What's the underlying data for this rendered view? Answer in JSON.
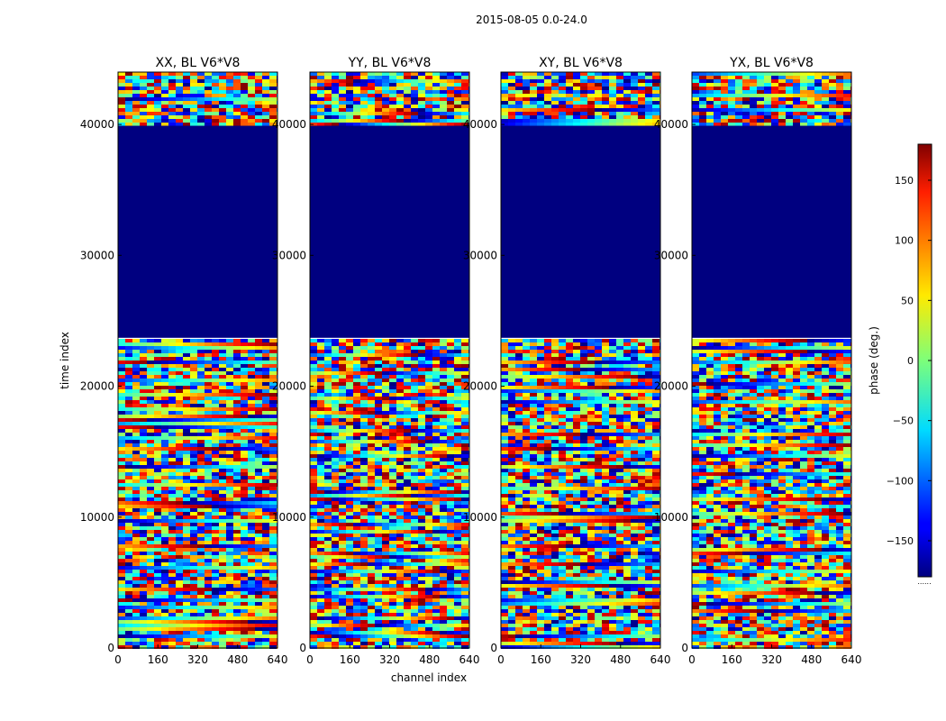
{
  "figure": {
    "suptitle": "2015-08-05 0.0-24.0",
    "xlabel": "channel index",
    "ylabel": "time index"
  },
  "chart_data": {
    "type": "heatmap",
    "x_range": [
      0,
      640
    ],
    "y_range": [
      0,
      44000
    ],
    "xticks": [
      "0",
      "160",
      "320",
      "480",
      "640"
    ],
    "yticks": [
      "0",
      "10000",
      "20000",
      "30000",
      "40000"
    ],
    "masked_time_range": [
      23700,
      39900
    ],
    "masked_value": -180,
    "panels": [
      {
        "title": "XX, BL V6*V8"
      },
      {
        "title": "YY, BL V6*V8"
      },
      {
        "title": "XY, BL V6*V8"
      },
      {
        "title": "YX, BL V6*V8"
      }
    ],
    "colorbar": {
      "label": "phase (deg.)",
      "vmin": -180,
      "vmax": 180,
      "ticks": [
        -150,
        -100,
        -50,
        0,
        50,
        100,
        150
      ],
      "tick_labels": [
        "−150",
        "−100",
        "−50",
        "0",
        "50",
        "100",
        "150"
      ],
      "colormap": "jet",
      "extra_ticks_text": "......"
    }
  }
}
